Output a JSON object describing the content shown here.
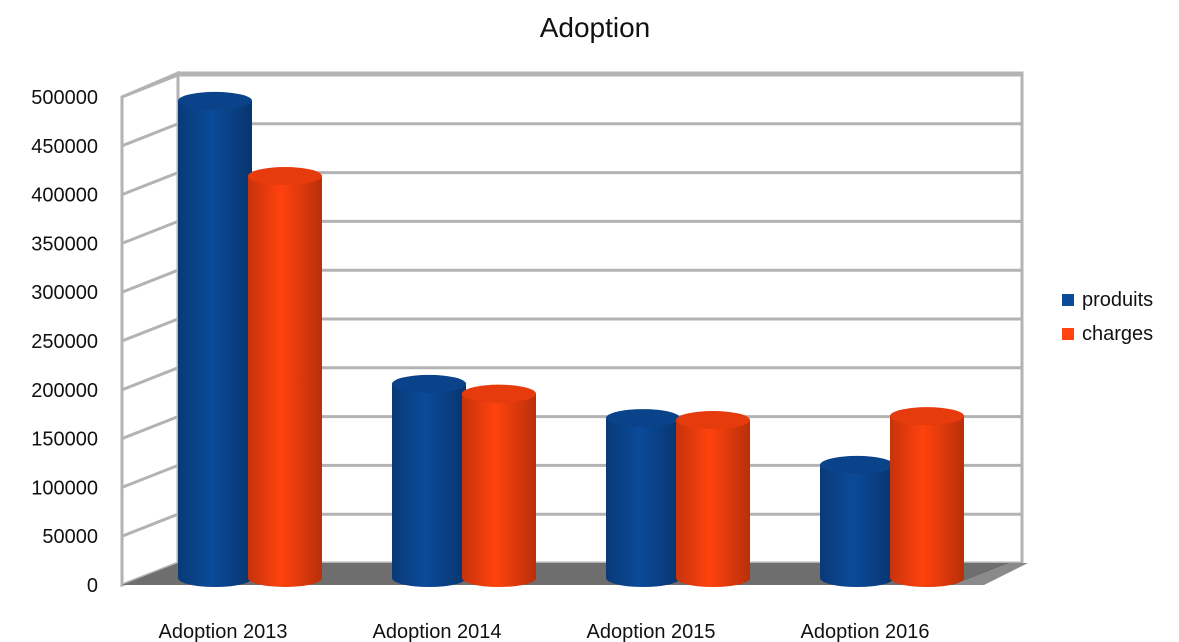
{
  "chart_data": {
    "type": "bar",
    "title": "Adoption",
    "categories": [
      "Adoption 2013",
      "Adoption 2014",
      "Adoption 2015",
      "Adoption 2016"
    ],
    "series": [
      {
        "name": "produits",
        "values": [
          495000,
          205000,
          170000,
          122000
        ],
        "color": "#0b4a99"
      },
      {
        "name": "charges",
        "values": [
          418000,
          195000,
          168000,
          172000
        ],
        "color": "#ff420e"
      }
    ],
    "ylim": [
      0,
      500000
    ],
    "yticks": [
      0,
      50000,
      100000,
      150000,
      200000,
      250000,
      300000,
      350000,
      400000,
      450000,
      500000
    ],
    "grid": true,
    "legend_position": "right",
    "style": "3d-cylinder"
  }
}
